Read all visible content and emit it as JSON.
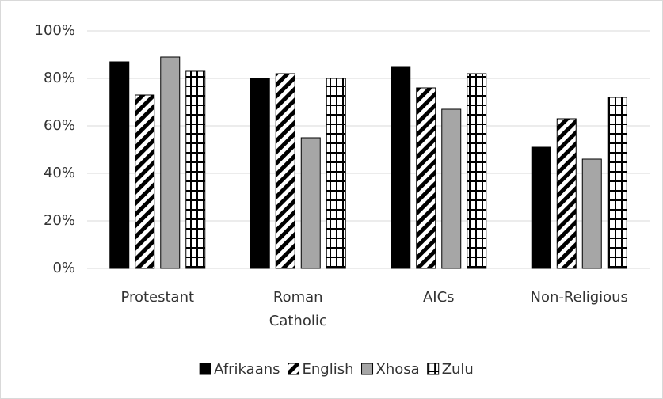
{
  "chart_data": {
    "type": "bar",
    "categories": [
      "Protestant",
      "Roman Catholic",
      "AICs",
      "Non-Religious"
    ],
    "series": [
      {
        "name": "Afrikaans",
        "color": "#000000",
        "pattern": "solid",
        "values": [
          87,
          80,
          85,
          51
        ]
      },
      {
        "name": "English",
        "color": "#000000",
        "pattern": "diagonal",
        "values": [
          73,
          82,
          76,
          63
        ]
      },
      {
        "name": "Xhosa",
        "color": "#a6a6a6",
        "pattern": "solid",
        "values": [
          89,
          55,
          67,
          46
        ]
      },
      {
        "name": "Zulu",
        "color": "#000000",
        "pattern": "grid",
        "values": [
          83,
          80,
          82,
          72
        ]
      }
    ],
    "ylim": [
      0,
      100
    ],
    "yticks": [
      {
        "value": 0,
        "label": "0%"
      },
      {
        "value": 20,
        "label": "20%"
      },
      {
        "value": 40,
        "label": "40%"
      },
      {
        "value": 60,
        "label": "60%"
      },
      {
        "value": 80,
        "label": "80%"
      },
      {
        "value": 100,
        "label": "100%"
      }
    ],
    "grid": true,
    "legend": "bottom"
  }
}
